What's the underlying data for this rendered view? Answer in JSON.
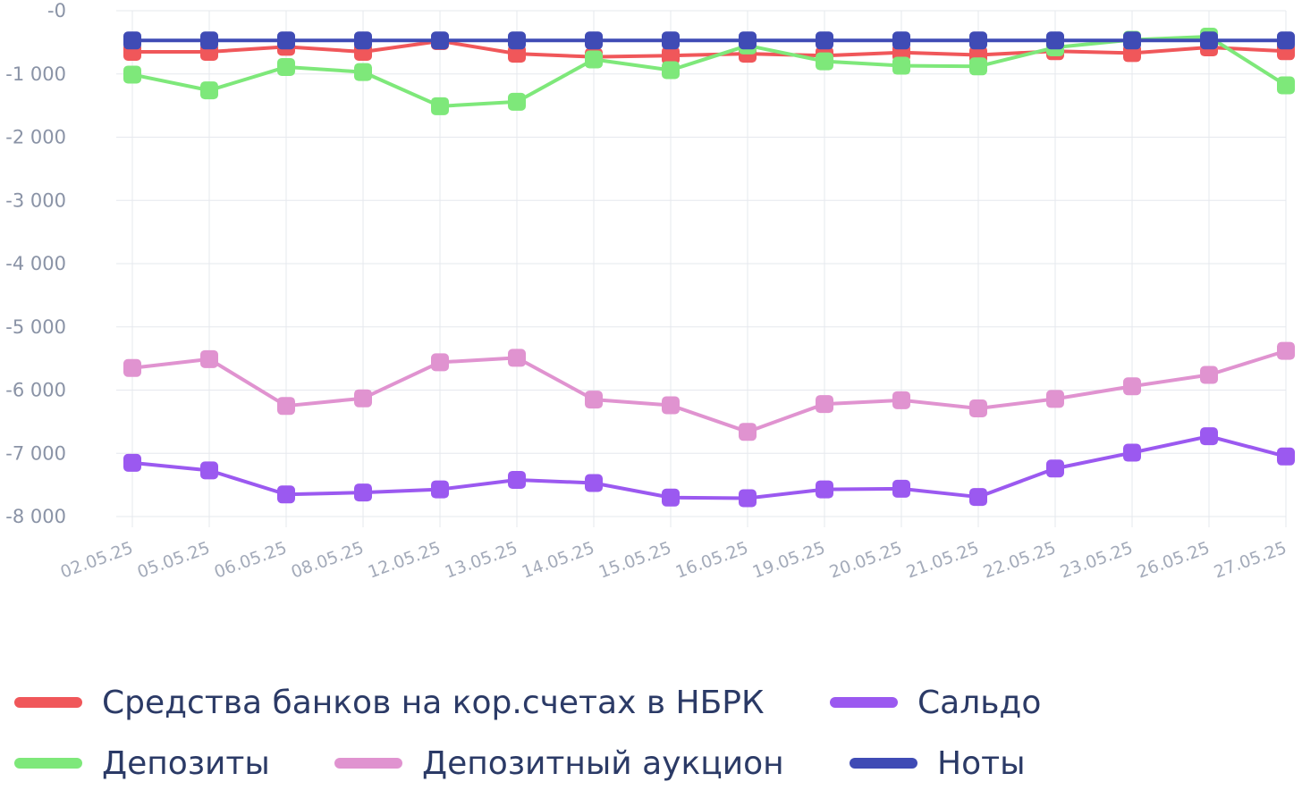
{
  "chart_data": {
    "type": "line",
    "categories": [
      "02.05.25",
      "05.05.25",
      "06.05.25",
      "08.05.25",
      "12.05.25",
      "13.05.25",
      "14.05.25",
      "15.05.25",
      "16.05.25",
      "19.05.25",
      "20.05.25",
      "21.05.25",
      "22.05.25",
      "23.05.25",
      "26.05.25",
      "27.05.25"
    ],
    "ylim": [
      -8000,
      0
    ],
    "yticks": [
      0,
      -1000,
      -2000,
      -3000,
      -4000,
      -5000,
      -6000,
      -7000,
      -8000
    ],
    "ytick_labels": [
      "-0",
      "-1 000",
      "-2 000",
      "-3 000",
      "-4 000",
      "-5 000",
      "-6 000",
      "-7 000",
      "-8 000"
    ],
    "grid": true,
    "legend_position": "bottom",
    "series": [
      {
        "name": "Средства банков на кор.счетах в НБРК",
        "color": "#f0575a",
        "values": [
          -650,
          -650,
          -570,
          -650,
          -480,
          -680,
          -730,
          -710,
          -680,
          -710,
          -660,
          -700,
          -640,
          -670,
          -580,
          -640
        ]
      },
      {
        "name": "Сальдо",
        "color": "#9b59f0",
        "values": [
          -7150,
          -7270,
          -7650,
          -7620,
          -7570,
          -7420,
          -7470,
          -7700,
          -7710,
          -7570,
          -7560,
          -7690,
          -7240,
          -6990,
          -6730,
          -7050
        ]
      },
      {
        "name": "Депозиты",
        "color": "#7ee87a",
        "values": [
          -1010,
          -1260,
          -890,
          -970,
          -1510,
          -1440,
          -770,
          -940,
          -550,
          -800,
          -870,
          -880,
          -580,
          -460,
          -410,
          -1180
        ]
      },
      {
        "name": "Депозитный аукцион",
        "color": "#e093d0",
        "values": [
          -5650,
          -5510,
          -6250,
          -6130,
          -5560,
          -5490,
          -6150,
          -6240,
          -6660,
          -6220,
          -6160,
          -6290,
          -6140,
          -5940,
          -5760,
          -5380
        ]
      },
      {
        "name": "Ноты",
        "color": "#3f4bb5",
        "values": [
          -470,
          -470,
          -470,
          -470,
          -470,
          -470,
          -470,
          -470,
          -470,
          -470,
          -470,
          -470,
          -470,
          -470,
          -470,
          -470
        ]
      }
    ]
  }
}
